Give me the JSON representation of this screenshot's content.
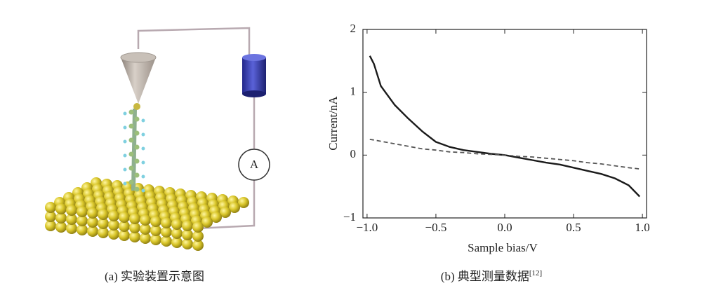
{
  "figure": {
    "caption_a": "(a) 实验装置示意图",
    "caption_b": "(b) 典型测量数据",
    "caption_b_ref": "[12]",
    "ammeter_label": "A"
  },
  "chart_data": {
    "type": "line",
    "xlabel": "Sample bias/V",
    "ylabel": "Current/nA",
    "x": [
      -0.98,
      -0.95,
      -0.9,
      -0.8,
      -0.7,
      -0.6,
      -0.5,
      -0.4,
      -0.3,
      -0.2,
      -0.1,
      0,
      0.1,
      0.2,
      0.3,
      0.4,
      0.5,
      0.6,
      0.7,
      0.8,
      0.9,
      0.98
    ],
    "series": [
      {
        "color": "#1a1a1a",
        "dashed": false,
        "values": [
          1.58,
          1.45,
          1.1,
          0.8,
          0.58,
          0.38,
          0.21,
          0.13,
          0.08,
          0.05,
          0.02,
          0,
          -0.04,
          -0.08,
          -0.12,
          -0.15,
          -0.2,
          -0.25,
          -0.3,
          -0.37,
          -0.48,
          -0.66
        ]
      },
      {
        "color": "#555555",
        "dashed": true,
        "values": [
          0.25,
          0.24,
          0.22,
          0.18,
          0.14,
          0.1,
          0.08,
          0.05,
          0.04,
          0.02,
          0.01,
          0,
          -0.02,
          -0.03,
          -0.05,
          -0.07,
          -0.09,
          -0.12,
          -0.14,
          -0.17,
          -0.2,
          -0.22
        ]
      }
    ],
    "xlim": [
      -1.03,
      1.03
    ],
    "ylim": [
      -1,
      2
    ],
    "xticks": [
      {
        "value": -1,
        "label": "−1.0"
      },
      {
        "value": -0.5,
        "label": "−0.5"
      },
      {
        "value": 0,
        "label": "0.0"
      },
      0.5,
      {
        "value": 1,
        "label": "1.0"
      }
    ],
    "yticks": [
      {
        "value": -1,
        "label": "−1"
      },
      0,
      1,
      2
    ]
  }
}
